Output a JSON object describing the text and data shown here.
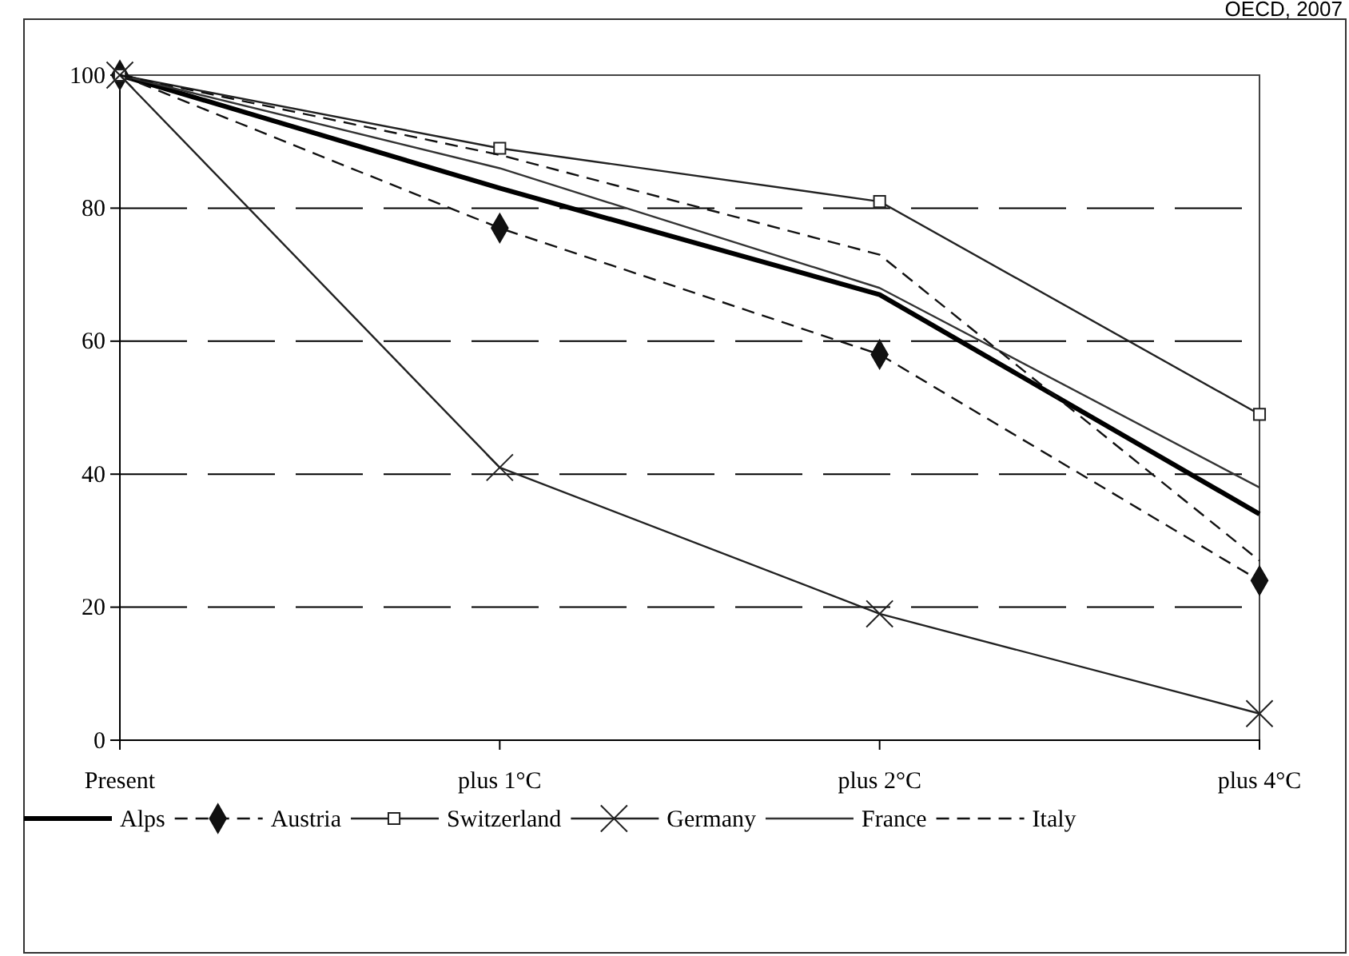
{
  "chart_data": {
    "type": "line",
    "categories": [
      "Present",
      "plus 1°C",
      "plus 2°C",
      "plus 4°C"
    ],
    "ylim": [
      0,
      100
    ],
    "yticks": [
      0,
      20,
      40,
      60,
      80,
      100
    ],
    "grid": "y",
    "legend": "bottom",
    "annotations": [
      "OECD, 2007"
    ],
    "series": [
      {
        "name": "Alps",
        "color": "#000000",
        "line_style": "solid",
        "marker": "none",
        "values": [
          100,
          83,
          67,
          34
        ]
      },
      {
        "name": "Austria",
        "color": "#111111",
        "line_style": "dashed",
        "marker": "diamond",
        "values": [
          100,
          77,
          58,
          24
        ]
      },
      {
        "name": "Switzerland",
        "color": "#222222",
        "line_style": "solid",
        "marker": "square",
        "values": [
          100,
          89,
          81,
          49
        ]
      },
      {
        "name": "Germany",
        "color": "#222222",
        "line_style": "solid",
        "marker": "cross",
        "values": [
          100,
          41,
          19,
          4
        ]
      },
      {
        "name": "France",
        "color": "#333333",
        "line_style": "solid",
        "marker": "none",
        "values": [
          100,
          86,
          68,
          38
        ]
      },
      {
        "name": "Italy",
        "color": "#111111",
        "line_style": "dashed",
        "marker": "none",
        "values": [
          100,
          88,
          73,
          27
        ]
      }
    ]
  }
}
